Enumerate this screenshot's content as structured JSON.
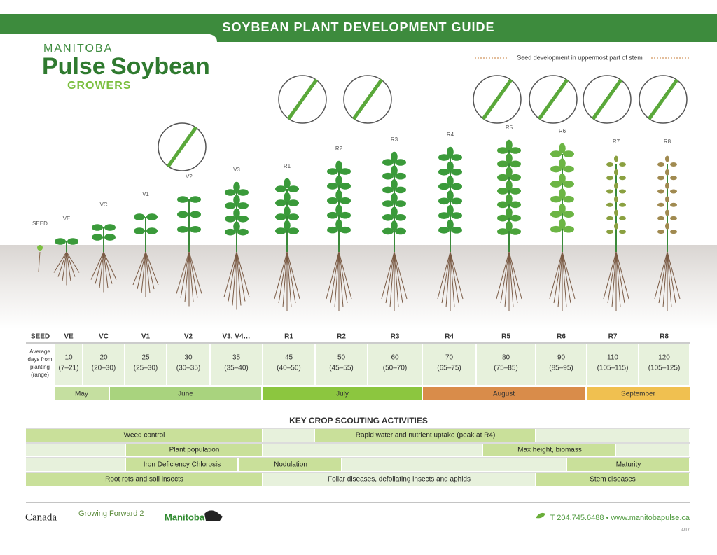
{
  "header": {
    "title": "SOYBEAN PLANT DEVELOPMENT GUIDE"
  },
  "logo": {
    "top": "MANITOBA",
    "word1": "Pulse",
    "word2": "Soybean",
    "bottom": "GROWERS"
  },
  "seed_note": "Seed development in uppermost part of stem",
  "stages": [
    "SEED",
    "VE",
    "VC",
    "V1",
    "V2",
    "V3",
    "R1",
    "R2",
    "R3",
    "R4",
    "R5",
    "R6",
    "R7",
    "R8"
  ],
  "table": {
    "header": [
      "SEED",
      "VE",
      "VC",
      "V1",
      "V2",
      "V3, V4…",
      "R1",
      "R2",
      "R3",
      "R4",
      "R5",
      "R6",
      "R7",
      "R8"
    ],
    "row_label": [
      "Average",
      "days from",
      "planting",
      "(range)"
    ],
    "days": [
      [
        "10",
        "(7–21)"
      ],
      [
        "20",
        "(20–30)"
      ],
      [
        "25",
        "(25–30)"
      ],
      [
        "30",
        "(30–35)"
      ],
      [
        "35",
        "(35–40)"
      ],
      [
        "45",
        "(40–50)"
      ],
      [
        "50",
        "(45–55)"
      ],
      [
        "60",
        "(50–70)"
      ],
      [
        "70",
        "(65–75)"
      ],
      [
        "80",
        "(75–85)"
      ],
      [
        "90",
        "(85–95)"
      ],
      [
        "110",
        "(105–115)"
      ],
      [
        "120",
        "(105–125)"
      ]
    ],
    "months": [
      "May",
      "June",
      "July",
      "August",
      "September"
    ]
  },
  "scouting": {
    "title": "KEY CROP SCOUTING ACTIVITIES",
    "rows": [
      [
        "Weed control",
        "Rapid water and nutrient uptake (peak at R4)"
      ],
      [
        "Plant population",
        "Max height, biomass"
      ],
      [
        "Iron Deficiency Chlorosis",
        "Nodulation",
        "Maturity"
      ],
      [
        "Root rots and soil insects",
        "Foliar diseases, defoliating insects and aphids",
        "Stem diseases"
      ]
    ]
  },
  "footer": {
    "canada": "Canada",
    "gf2": "Growing Forward 2",
    "manitoba": "Manitoba",
    "contact": "T 204.745.6488 • www.manitobapulse.ca",
    "code": "4/17"
  }
}
